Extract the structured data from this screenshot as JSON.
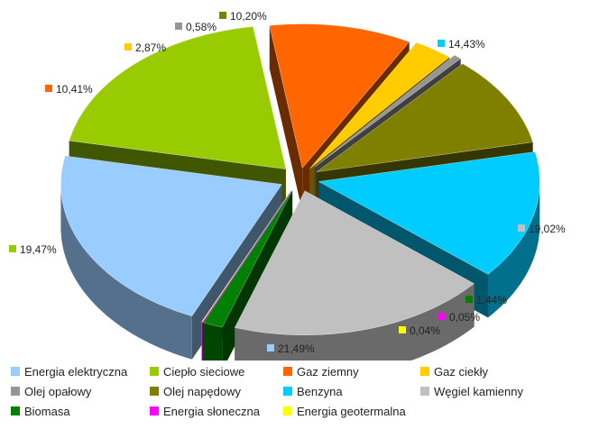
{
  "chart_data": {
    "type": "pie",
    "title": "",
    "style": "3d-exploded",
    "legend_position": "bottom",
    "slices": [
      {
        "name": "Energia elektryczna",
        "value": 21.49,
        "label": "21,49%",
        "color": "#99CCFF"
      },
      {
        "name": "Ciepło sieciowe",
        "value": 19.47,
        "label": "19,47%",
        "color": "#99CC00"
      },
      {
        "name": "Gaz ziemny",
        "value": 10.41,
        "label": "10,41%",
        "color": "#FF6600"
      },
      {
        "name": "Gaz ciekły",
        "value": 2.87,
        "label": "2,87%",
        "color": "#FFCC00"
      },
      {
        "name": "Olej opałowy",
        "value": 0.58,
        "label": "0,58%",
        "color": "#969696"
      },
      {
        "name": "Olej napędowy",
        "value": 10.2,
        "label": "10,20%",
        "color": "#808000"
      },
      {
        "name": "Benzyna",
        "value": 14.43,
        "label": "14,43%",
        "color": "#00CCFF"
      },
      {
        "name": "Węgiel kamienny",
        "value": 19.02,
        "label": "19,02%",
        "color": "#C0C0C0"
      },
      {
        "name": "Biomasa",
        "value": 1.44,
        "label": "1,44%",
        "color": "#008000"
      },
      {
        "name": "Energia słoneczna",
        "value": 0.05,
        "label": "0,05%",
        "color": "#FF00FF"
      },
      {
        "name": "Energia geotermalna",
        "value": 0.04,
        "label": "0,04%",
        "color": "#FFFF00"
      }
    ]
  }
}
